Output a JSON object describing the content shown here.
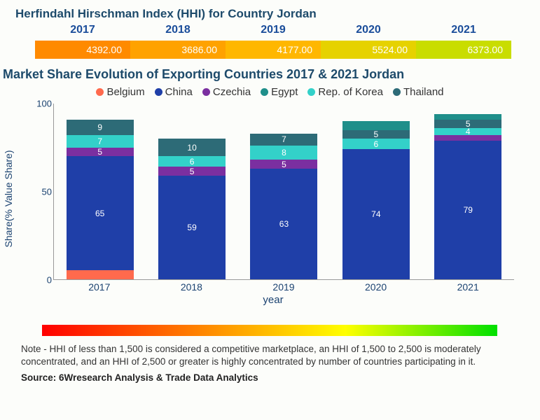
{
  "hhi": {
    "title": "Herfindahl Hirschman Index (HHI) for Country Jordan",
    "years": [
      "2017",
      "2018",
      "2019",
      "2020",
      "2021"
    ],
    "values": [
      "4392.00",
      "3686.00",
      "4177.00",
      "5524.00",
      "6373.00"
    ],
    "cell_colors": [
      "#ff8a00",
      "#ffa200",
      "#ffb700",
      "#e6d200",
      "#c9dd00"
    ]
  },
  "chart": {
    "title": "Market Share Evolution of Exporting Countries 2017 & 2021 Jordan",
    "type": "stacked-bar",
    "y_axis_title": "Share(% Value Share)",
    "x_axis_title": "year",
    "ylim": [
      0,
      100
    ],
    "yticks": [
      "0",
      "50",
      "100"
    ],
    "legend": [
      {
        "label": "Belgium",
        "color": "#ff6a4d"
      },
      {
        "label": "China",
        "color": "#1f3fa8"
      },
      {
        "label": "Czechia",
        "color": "#7b2fa0"
      },
      {
        "label": "Egypt",
        "color": "#1f8f8a"
      },
      {
        "label": "Rep. of Korea",
        "color": "#33d1c9"
      },
      {
        "label": "Thailand",
        "color": "#2d6b77"
      }
    ],
    "categories": [
      "2017",
      "2018",
      "2019",
      "2020",
      "2021"
    ],
    "stacks": [
      [
        {
          "country": "Belgium",
          "value": 5,
          "label": "",
          "color": "#ff6a4d"
        },
        {
          "country": "China",
          "value": 65,
          "label": "65",
          "color": "#1f3fa8"
        },
        {
          "country": "Czechia",
          "value": 5,
          "label": "5",
          "color": "#7b2fa0"
        },
        {
          "country": "Rep. of Korea",
          "value": 7,
          "label": "7",
          "color": "#33d1c9"
        },
        {
          "country": "Thailand",
          "value": 9,
          "label": "9",
          "color": "#2d6b77"
        }
      ],
      [
        {
          "country": "China",
          "value": 59,
          "label": "59",
          "color": "#1f3fa8"
        },
        {
          "country": "Czechia",
          "value": 5,
          "label": "5",
          "color": "#7b2fa0"
        },
        {
          "country": "Rep. of Korea",
          "value": 6,
          "label": "6",
          "color": "#33d1c9"
        },
        {
          "country": "Thailand",
          "value": 10,
          "label": "10",
          "color": "#2d6b77"
        }
      ],
      [
        {
          "country": "China",
          "value": 63,
          "label": "63",
          "color": "#1f3fa8"
        },
        {
          "country": "Czechia",
          "value": 5,
          "label": "5",
          "color": "#7b2fa0"
        },
        {
          "country": "Rep. of Korea",
          "value": 8,
          "label": "8",
          "color": "#33d1c9"
        },
        {
          "country": "Thailand",
          "value": 7,
          "label": "7",
          "color": "#2d6b77"
        }
      ],
      [
        {
          "country": "China",
          "value": 74,
          "label": "74",
          "color": "#1f3fa8"
        },
        {
          "country": "Rep. of Korea",
          "value": 6,
          "label": "6",
          "color": "#33d1c9"
        },
        {
          "country": "Thailand",
          "value": 5,
          "label": "5",
          "color": "#2d6b77"
        },
        {
          "country": "Egypt",
          "value": 5,
          "label": "",
          "color": "#1f8f8a"
        }
      ],
      [
        {
          "country": "China",
          "value": 79,
          "label": "79",
          "color": "#1f3fa8"
        },
        {
          "country": "Czechia",
          "value": 3,
          "label": "",
          "color": "#7b2fa0"
        },
        {
          "country": "Rep. of Korea",
          "value": 4,
          "label": "4",
          "color": "#33d1c9"
        },
        {
          "country": "Thailand",
          "value": 5,
          "label": "5",
          "color": "#2d6b77"
        },
        {
          "country": "Egypt",
          "value": 3,
          "label": "",
          "color": "#1f8f8a"
        }
      ]
    ]
  },
  "note": "Note - HHI of less than 1,500 is considered a competitive marketplace, an HHI of 1,500 to 2,500 is moderately concentrated, and an HHI of 2,500 or greater is highly concentrated by number of countries participating in it.",
  "source": "Source: 6Wresearch Analysis & Trade Data Analytics"
}
